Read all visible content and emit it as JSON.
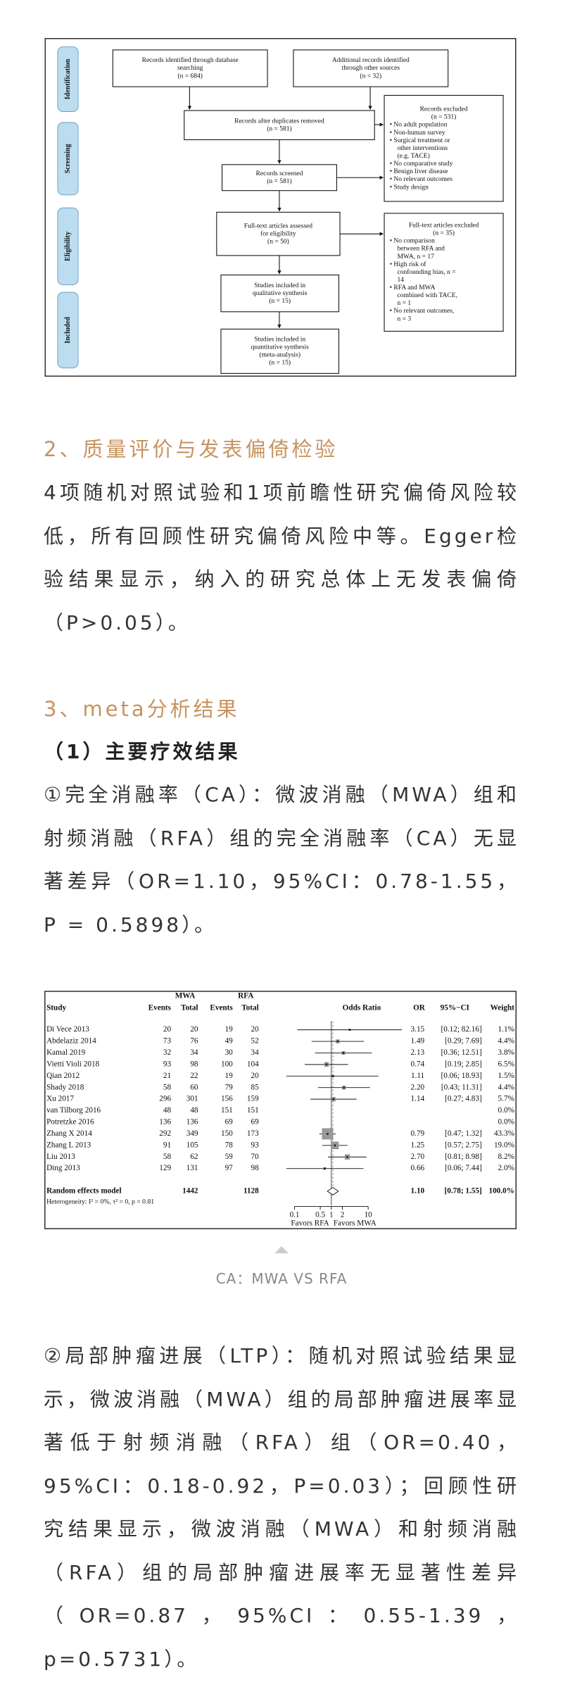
{
  "flow_diagram": {
    "phases": [
      "Identification",
      "Screening",
      "Eligibility",
      "Included"
    ],
    "boxes": [
      {
        "lines": [
          "Records identified through database",
          "searching",
          "(n = 684)"
        ]
      },
      {
        "lines": [
          "Additional records identified",
          "through other sources",
          "(n = 32)"
        ]
      },
      {
        "lines": [
          "Records after duplicates removed",
          "(n = 581)"
        ]
      },
      {
        "lines": [
          "Records excluded",
          "(n = 531)",
          "• No adult population",
          "• Non-human survey",
          "• Surgical treatment or",
          "other interventions",
          "(e.g. TACE)",
          "• No comparative study",
          "• Benign liver disease",
          "• No relevant outcomes",
          "• Study design"
        ]
      },
      {
        "lines": [
          "Records screened",
          "(n = 581)"
        ]
      },
      {
        "lines": [
          "Full-text articles assessed",
          "for eligibility",
          "(n = 50)"
        ]
      },
      {
        "lines": [
          "Full-text articles excluded",
          "(n = 35)",
          "• No comparison",
          "between RFA and",
          "MWA, n = 17",
          "• High risk of",
          "confounding bias, n =",
          "14",
          "• RFA and MWA",
          "combined with TACE,",
          "n = 1",
          "• No relevant outcomes,",
          "n = 3"
        ]
      },
      {
        "lines": [
          "Studies included in",
          "qualitative synthesis",
          "(n = 15)"
        ]
      },
      {
        "lines": [
          "Studies included in",
          "quantitative synthesis",
          "(meta-analysis)",
          "(n = 15)"
        ]
      }
    ]
  },
  "sections": [
    {
      "heading": "2、质量评价与发表偏倚检验",
      "paragraphs": [
        "4项随机对照试验和1项前瞻性研究偏倚风险较低，所有回顾性研究偏倚风险中等。Egger检验结果显示，纳入的研究总体上无发表偏倚（P>0.05）。"
      ]
    },
    {
      "heading": "3、meta分析结果",
      "subheading": "（1）主要疗效结果",
      "paragraphs": [
        "①完全消融率（CA）：微波消融（MWA）组和射频消融（RFA）组的完全消融率（CA）无显著差异（OR=1.10，95%CI：0.78-1.55，P = 0.5898）。",
        "②局部肿瘤进展（LTP）：随机对照试验结果显示，微波消融（MWA）组的局部肿瘤进展率显著低于射频消融（RFA）组（OR=0.40，95%CI：0.18-0.92，P=0.03）；回顾性研究结果显示，微波消融（MWA）和射频消融（RFA）组的局部肿瘤进展率无显著性差异（OR=0.87，95%CI：0.55-1.39，p=0.5731）。"
      ]
    }
  ],
  "forest_plot": {
    "headers": {
      "mwa": "MWA",
      "rfa": "RFA",
      "study": "Study",
      "events": "Events",
      "total": "Total",
      "odds_ratio": "Odds Ratio",
      "or": "OR",
      "ci": "95%−CI",
      "weight": "Weight"
    },
    "studies": [
      {
        "name": "Di Vece 2013",
        "mwa_events": 20,
        "mwa_total": 20,
        "rfa_events": 19,
        "rfa_total": 20,
        "or": 3.15,
        "or_label": "3.15",
        "ci": [
          0.12,
          82.16
        ],
        "ci_label": "[0.12; 82.16]",
        "weight": 1.1,
        "weight_label": "1.1%"
      },
      {
        "name": "Abdelaziz 2014",
        "mwa_events": 73,
        "mwa_total": 76,
        "rfa_events": 49,
        "rfa_total": 52,
        "or": 1.49,
        "or_label": "1.49",
        "ci": [
          0.29,
          7.69
        ],
        "ci_label": "[0.29; 7.69]",
        "weight": 4.4,
        "weight_label": "4.4%"
      },
      {
        "name": "Kamal 2019",
        "mwa_events": 32,
        "mwa_total": 34,
        "rfa_events": 30,
        "rfa_total": 34,
        "or": 2.13,
        "or_label": "2.13",
        "ci": [
          0.36,
          12.51
        ],
        "ci_label": "[0.36; 12.51]",
        "weight": 3.8,
        "weight_label": "3.8%"
      },
      {
        "name": "Vietti Violi 2018",
        "mwa_events": 93,
        "mwa_total": 98,
        "rfa_events": 100,
        "rfa_total": 104,
        "or": 0.74,
        "or_label": "0.74",
        "ci": [
          0.19,
          2.85
        ],
        "ci_label": "[0.19; 2.85]",
        "weight": 6.5,
        "weight_label": "6.5%"
      },
      {
        "name": "Qian 2012",
        "mwa_events": 21,
        "mwa_total": 22,
        "rfa_events": 19,
        "rfa_total": 20,
        "or": 1.11,
        "or_label": "1.11",
        "ci": [
          0.06,
          18.93
        ],
        "ci_label": "[0.06; 18.93]",
        "weight": 1.5,
        "weight_label": "1.5%"
      },
      {
        "name": "Shady 2018",
        "mwa_events": 58,
        "mwa_total": 60,
        "rfa_events": 79,
        "rfa_total": 85,
        "or": 2.2,
        "or_label": "2.20",
        "ci": [
          0.43,
          11.31
        ],
        "ci_label": "[0.43; 11.31]",
        "weight": 4.4,
        "weight_label": "4.4%"
      },
      {
        "name": "Xu 2017",
        "mwa_events": 296,
        "mwa_total": 301,
        "rfa_events": 156,
        "rfa_total": 159,
        "or": 1.14,
        "or_label": "1.14",
        "ci": [
          0.27,
          4.83
        ],
        "ci_label": "[0.27; 4.83]",
        "weight": 5.7,
        "weight_label": "5.7%"
      },
      {
        "name": "van Tilborg 2016",
        "mwa_events": 48,
        "mwa_total": 48,
        "rfa_events": 151,
        "rfa_total": 151,
        "or": null,
        "or_label": null,
        "ci": null,
        "ci_label": null,
        "weight": 0,
        "weight_label": "0.0%"
      },
      {
        "name": "Potretzke 2016",
        "mwa_events": 136,
        "mwa_total": 136,
        "rfa_events": 69,
        "rfa_total": 69,
        "or": null,
        "or_label": null,
        "ci": null,
        "ci_label": null,
        "weight": 0,
        "weight_label": "0.0%"
      },
      {
        "name": "Zhang X 2014",
        "mwa_events": 292,
        "mwa_total": 349,
        "rfa_events": 150,
        "rfa_total": 173,
        "or": 0.79,
        "or_label": "0.79",
        "ci": [
          0.47,
          1.32
        ],
        "ci_label": "[0.47; 1.32]",
        "weight": 43.3,
        "weight_label": "43.3%"
      },
      {
        "name": "Zhang L 2013",
        "mwa_events": 91,
        "mwa_total": 105,
        "rfa_events": 78,
        "rfa_total": 93,
        "or": 1.25,
        "or_label": "1.25",
        "ci": [
          0.57,
          2.75
        ],
        "ci_label": "[0.57; 2.75]",
        "weight": 19,
        "weight_label": "19.0%"
      },
      {
        "name": "Liu 2013",
        "mwa_events": 58,
        "mwa_total": 62,
        "rfa_events": 59,
        "rfa_total": 70,
        "or": 2.7,
        "or_label": "2.70",
        "ci": [
          0.81,
          8.98
        ],
        "ci_label": "[0.81; 8.98]",
        "weight": 8.2,
        "weight_label": "8.2%"
      },
      {
        "name": "Ding 2013",
        "mwa_events": 129,
        "mwa_total": 131,
        "rfa_events": 97,
        "rfa_total": 98,
        "or": 0.66,
        "or_label": "0.66",
        "ci": [
          0.06,
          7.44
        ],
        "ci_label": "[0.06; 7.44]",
        "weight": 2,
        "weight_label": "2.0%"
      }
    ],
    "summary": {
      "name": "Random effects model",
      "mwa_total": 1442,
      "rfa_total": 1128,
      "or": 1.1,
      "or_label": "1.10",
      "ci": [
        0.78,
        1.55
      ],
      "ci_label": "[0.78; 1.55]",
      "weight": 100,
      "weight_label": "100.0%"
    },
    "heterogeneity": "Heterogeneity: I² = 0%, τ² = 0, p = 0.81",
    "log_scale": true,
    "xlim": [
      0.1,
      10
    ],
    "xticks": [
      0.1,
      0.5,
      1,
      2,
      10
    ],
    "favors_left": "Favors RFA",
    "favors_right": "Favors MWA"
  },
  "caption": "CA：MWA VS RFA"
}
